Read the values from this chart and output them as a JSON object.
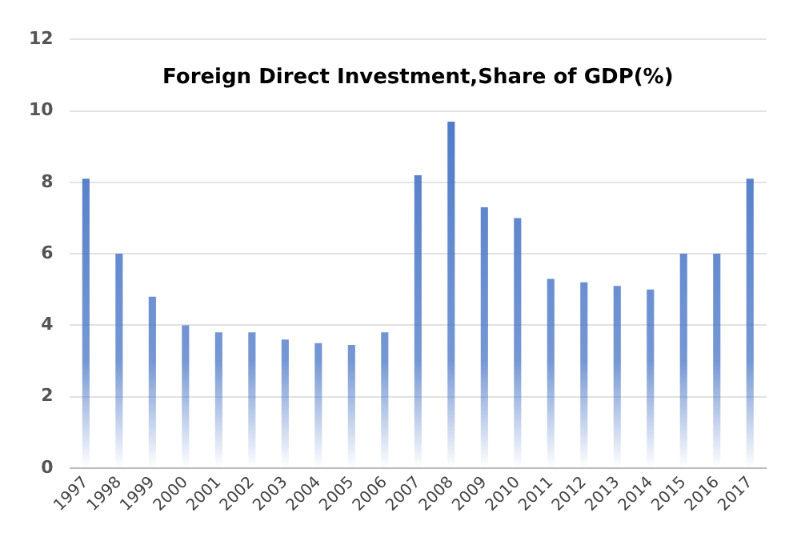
{
  "chart_data": {
    "type": "bar",
    "title": "Foreign Direct Investment,Share of GDP(%)",
    "categories": [
      "1997",
      "1998",
      "1999",
      "2000",
      "2001",
      "2002",
      "2003",
      "2004",
      "2005",
      "2006",
      "2007",
      "2008",
      "2009",
      "2010",
      "2011",
      "2012",
      "2013",
      "2014",
      "2015",
      "2016",
      "2017"
    ],
    "values": [
      8.1,
      6.0,
      4.8,
      4.0,
      3.8,
      3.8,
      3.6,
      3.5,
      3.45,
      3.8,
      8.2,
      9.7,
      7.3,
      7.0,
      5.3,
      5.2,
      5.1,
      5.0,
      6.0,
      6.0,
      8.1
    ],
    "color": "#4472c4",
    "ylim": [
      0,
      12
    ],
    "yticks": [
      0,
      2,
      4,
      6,
      8,
      10,
      12
    ],
    "grid": "y",
    "legend": false
  }
}
